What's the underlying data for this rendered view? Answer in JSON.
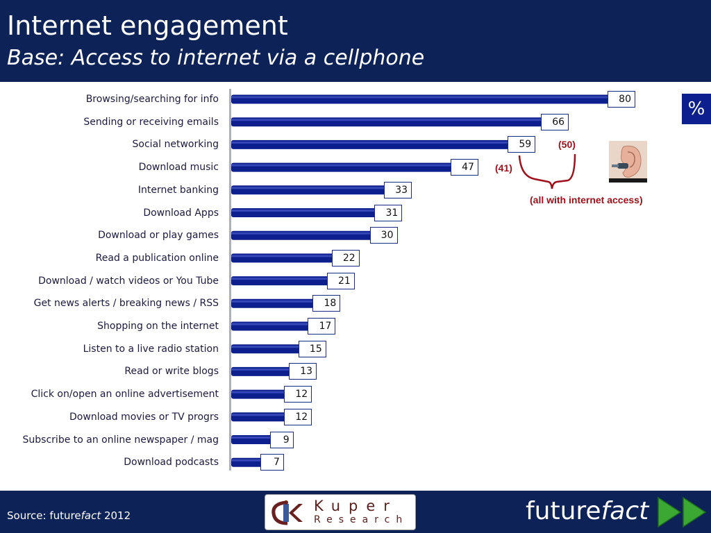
{
  "header": {
    "title": "Internet engagement",
    "subtitle": "Base: Access to internet via a cellphone"
  },
  "footer": {
    "source_prefix": "Source: future",
    "source_italic": "fact",
    "source_suffix": " 2012",
    "logo_line1": "Kuper",
    "logo_line2": "Research",
    "brand_a": "future",
    "brand_b": "fact"
  },
  "unit_label": "%",
  "annotations": {
    "social_total": "(50)",
    "music_total": "(41)",
    "note": "(all with internet access)"
  },
  "colors": {
    "header_bg": "#0d2257",
    "bar": "#0d1f8c",
    "annotation": "#a0101a",
    "arrow": "#3aa832"
  },
  "chart_data": {
    "type": "bar",
    "orientation": "horizontal",
    "categories": [
      "Browsing/searching for info",
      "Sending or receiving emails",
      "Social networking",
      "Download music",
      "Internet banking",
      "Download Apps",
      "Download or play games",
      "Read a publication online",
      "Download / watch videos or You Tube",
      "Get news alerts / breaking news / RSS",
      "Shopping on the internet",
      "Listen to a live radio station",
      "Read or write blogs",
      "Click on/open an online advertisement",
      "Download movies or TV progrs",
      "Subscribe to an online newspaper / mag",
      "Download podcasts"
    ],
    "values": [
      80,
      66,
      59,
      47,
      33,
      31,
      30,
      22,
      21,
      18,
      17,
      15,
      13,
      12,
      12,
      9,
      7
    ],
    "title": "Internet engagement",
    "subtitle": "Base: Access to internet via a cellphone",
    "xlabel": "",
    "ylabel": "",
    "unit": "%",
    "xlim": [
      0,
      80
    ],
    "grid": false,
    "legend": "none"
  }
}
